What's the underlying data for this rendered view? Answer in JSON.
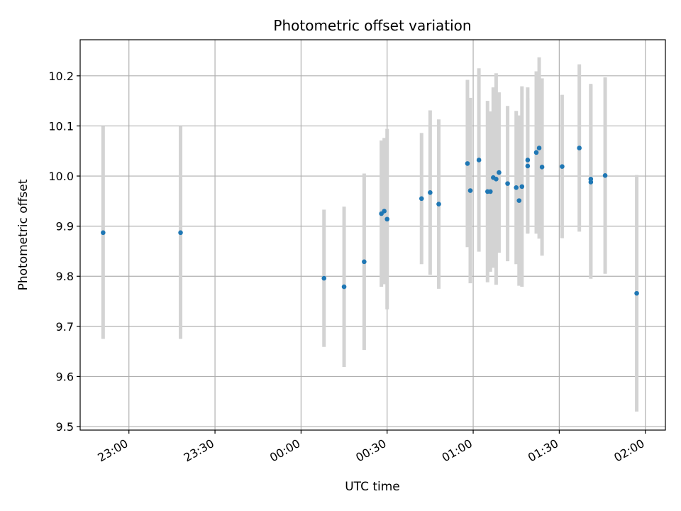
{
  "chart_data": {
    "type": "scatter",
    "title": "Photometric offset variation",
    "xlabel": "UTC time",
    "ylabel": "Photometric offset",
    "x_tick_labels": [
      "23:00",
      "23:30",
      "00:00",
      "00:30",
      "01:00",
      "01:30",
      "02:00"
    ],
    "y_tick_labels": [
      "9.5",
      "9.6",
      "9.7",
      "9.8",
      "9.9",
      "10.0",
      "10.1",
      "10.2"
    ],
    "y_ticks": [
      9.5,
      9.6,
      9.7,
      9.8,
      9.9,
      10.0,
      10.1,
      10.2
    ],
    "xlim": [
      "22:43",
      "02:07"
    ],
    "ylim": [
      9.493,
      10.272
    ],
    "grid": true,
    "point_color": "#1f77b4",
    "error_bar_color": "#d3d3d3",
    "points": [
      {
        "time": "22:51",
        "y": 9.887,
        "yerr": 0.212
      },
      {
        "time": "23:18",
        "y": 9.887,
        "yerr": 0.212
      },
      {
        "time": "00:08",
        "y": 9.796,
        "yerr": 0.137
      },
      {
        "time": "00:15",
        "y": 9.779,
        "yerr": 0.16
      },
      {
        "time": "00:22",
        "y": 9.829,
        "yerr": 0.176
      },
      {
        "time": "00:28",
        "y": 9.925,
        "yerr": 0.146
      },
      {
        "time": "00:29",
        "y": 9.93,
        "yerr": 0.146
      },
      {
        "time": "00:30",
        "y": 9.914,
        "yerr": 0.18
      },
      {
        "time": "00:42",
        "y": 9.955,
        "yerr": 0.131
      },
      {
        "time": "00:45",
        "y": 9.967,
        "yerr": 0.164
      },
      {
        "time": "00:48",
        "y": 9.944,
        "yerr": 0.169
      },
      {
        "time": "00:58",
        "y": 10.025,
        "yerr": 0.167
      },
      {
        "time": "00:59",
        "y": 9.971,
        "yerr": 0.185
      },
      {
        "time": "01:02",
        "y": 10.032,
        "yerr": 0.183
      },
      {
        "time": "01:05",
        "y": 9.969,
        "yerr": 0.181
      },
      {
        "time": "01:06",
        "y": 9.969,
        "yerr": 0.16
      },
      {
        "time": "01:07",
        "y": 9.997,
        "yerr": 0.18
      },
      {
        "time": "01:08",
        "y": 9.994,
        "yerr": 0.211
      },
      {
        "time": "01:09",
        "y": 10.007,
        "yerr": 0.16
      },
      {
        "time": "01:12",
        "y": 9.985,
        "yerr": 0.155
      },
      {
        "time": "01:15",
        "y": 9.977,
        "yerr": 0.153
      },
      {
        "time": "01:16",
        "y": 9.951,
        "yerr": 0.17
      },
      {
        "time": "01:17",
        "y": 9.979,
        "yerr": 0.2
      },
      {
        "time": "01:19",
        "y": 10.02,
        "yerr": 0.135
      },
      {
        "time": "01:19",
        "y": 10.032,
        "yerr": 0.145
      },
      {
        "time": "01:22",
        "y": 10.047,
        "yerr": 0.162
      },
      {
        "time": "01:23",
        "y": 10.056,
        "yerr": 0.181
      },
      {
        "time": "01:24",
        "y": 10.018,
        "yerr": 0.177
      },
      {
        "time": "01:31",
        "y": 10.019,
        "yerr": 0.143
      },
      {
        "time": "01:37",
        "y": 10.056,
        "yerr": 0.167
      },
      {
        "time": "01:41",
        "y": 9.994,
        "yerr": 0.19
      },
      {
        "time": "01:41",
        "y": 9.988,
        "yerr": 0.193
      },
      {
        "time": "01:46",
        "y": 10.001,
        "yerr": 0.196
      },
      {
        "time": "01:57",
        "y": 9.766,
        "yerr": 0.236
      }
    ]
  }
}
